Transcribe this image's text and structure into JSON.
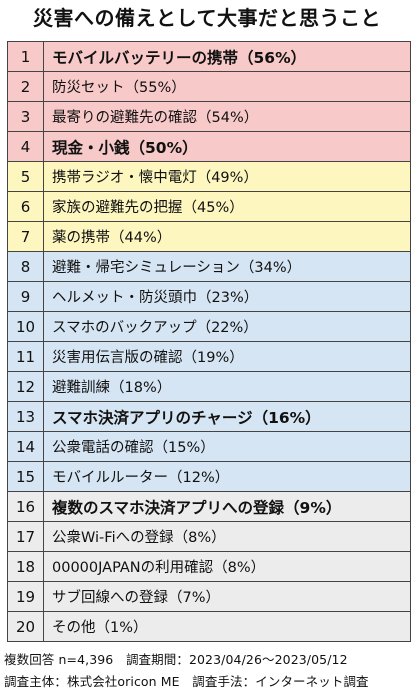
{
  "colors": {
    "tier1": "#f8c9c9",
    "tier2": "#fdf6bf",
    "tier3": "#d6e5f3",
    "tier4": "#ececec"
  },
  "chart_data": {
    "type": "table",
    "title": "災害への備えとして大事だと思うこと",
    "rows": [
      {
        "rank": "1",
        "text": "モバイルバッテリーの携帯（56%）",
        "value": 56,
        "bold": true,
        "tier": "tier1"
      },
      {
        "rank": "2",
        "text": "防災セット（55%）",
        "value": 55,
        "bold": false,
        "tier": "tier1"
      },
      {
        "rank": "3",
        "text": "最寄りの避難先の確認（54%）",
        "value": 54,
        "bold": false,
        "tier": "tier1"
      },
      {
        "rank": "4",
        "text": "現金・小銭（50%）",
        "value": 50,
        "bold": true,
        "tier": "tier1"
      },
      {
        "rank": "5",
        "text": "携帯ラジオ・懐中電灯（49%）",
        "value": 49,
        "bold": false,
        "tier": "tier2"
      },
      {
        "rank": "6",
        "text": "家族の避難先の把握（45%）",
        "value": 45,
        "bold": false,
        "tier": "tier2"
      },
      {
        "rank": "7",
        "text": "薬の携帯（44%）",
        "value": 44,
        "bold": false,
        "tier": "tier2"
      },
      {
        "rank": "8",
        "text": "避難・帰宅シミュレーション（34%）",
        "value": 34,
        "bold": false,
        "tier": "tier3"
      },
      {
        "rank": "9",
        "text": "ヘルメット・防災頭巾（23%）",
        "value": 23,
        "bold": false,
        "tier": "tier3"
      },
      {
        "rank": "10",
        "text": "スマホのバックアップ（22%）",
        "value": 22,
        "bold": false,
        "tier": "tier3"
      },
      {
        "rank": "11",
        "text": "災害用伝言版の確認（19%）",
        "value": 19,
        "bold": false,
        "tier": "tier3"
      },
      {
        "rank": "12",
        "text": "避難訓練（18%）",
        "value": 18,
        "bold": false,
        "tier": "tier3"
      },
      {
        "rank": "13",
        "text": "スマホ決済アプリのチャージ（16%）",
        "value": 16,
        "bold": true,
        "tier": "tier3"
      },
      {
        "rank": "14",
        "text": "公衆電話の確認（15%）",
        "value": 15,
        "bold": false,
        "tier": "tier3"
      },
      {
        "rank": "15",
        "text": "モバイルルーター（12%）",
        "value": 12,
        "bold": false,
        "tier": "tier3"
      },
      {
        "rank": "16",
        "text": "複数のスマホ決済アプリへの登録（9%）",
        "value": 9,
        "bold": true,
        "tier": "tier4"
      },
      {
        "rank": "17",
        "text": "公衆Wi-Fiへの登録（8%）",
        "value": 8,
        "bold": false,
        "tier": "tier4"
      },
      {
        "rank": "18",
        "text": "00000JAPANの利用確認（8%）",
        "value": 8,
        "bold": false,
        "tier": "tier4"
      },
      {
        "rank": "19",
        "text": "サブ回線への登録（7%）",
        "value": 7,
        "bold": false,
        "tier": "tier4"
      },
      {
        "rank": "20",
        "text": "その他（1%）",
        "value": 1,
        "bold": false,
        "tier": "tier4"
      }
    ],
    "footnotes": [
      "複数回答 n=4,396　調査期間：2023/04/26～2023/05/12",
      "調査主体：株式会社oricon ME　調査手法：インターネット調査"
    ]
  }
}
